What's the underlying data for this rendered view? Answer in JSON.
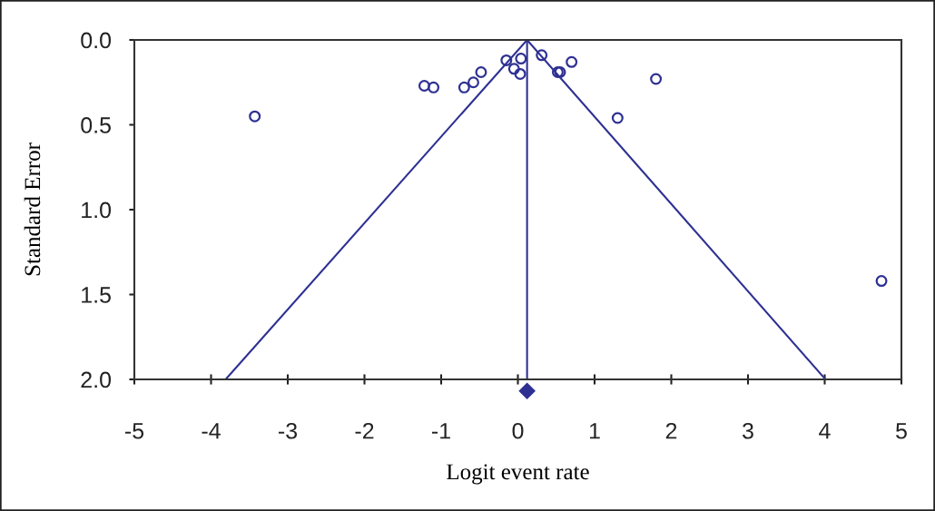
{
  "chart_data": {
    "type": "scatter",
    "xlabel": "Logit event rate",
    "ylabel": "Standard Error",
    "xlim": [
      -5,
      5
    ],
    "xticks": [
      -5,
      -4,
      -3,
      -2,
      -1,
      0,
      1,
      2,
      3,
      4,
      5
    ],
    "ylim": [
      2,
      0
    ],
    "yticks": [
      {
        "value": 0,
        "label": "0.0"
      },
      0.5,
      {
        "value": 1,
        "label": "1.0"
      },
      1.5,
      {
        "value": 2,
        "label": "2.0"
      }
    ],
    "marker": "circle",
    "series": [
      {
        "color": "#2e3192",
        "x": [
          -3.43,
          -1.22,
          -1.1,
          -0.7,
          -0.58,
          -0.48,
          -0.15,
          -0.05,
          0.03,
          0.04,
          0.31,
          0.52,
          0.55,
          0.7,
          1.3,
          1.8,
          4.74
        ],
        "values": [
          0.45,
          0.27,
          0.28,
          0.28,
          0.25,
          0.19,
          0.12,
          0.17,
          0.2,
          0.11,
          0.09,
          0.19,
          0.19,
          0.13,
          0.46,
          0.23,
          1.42
        ]
      },
      {
        "type": "line",
        "color": "#2e3192",
        "line_style": "solid",
        "marker": "none",
        "x": [
          -3.81,
          0.12,
          4.01
        ],
        "values": [
          2,
          0,
          2
        ]
      }
    ],
    "ref_lines": [
      {
        "axis": "x",
        "value": 0.12,
        "color": "#2e3192"
      }
    ]
  }
}
